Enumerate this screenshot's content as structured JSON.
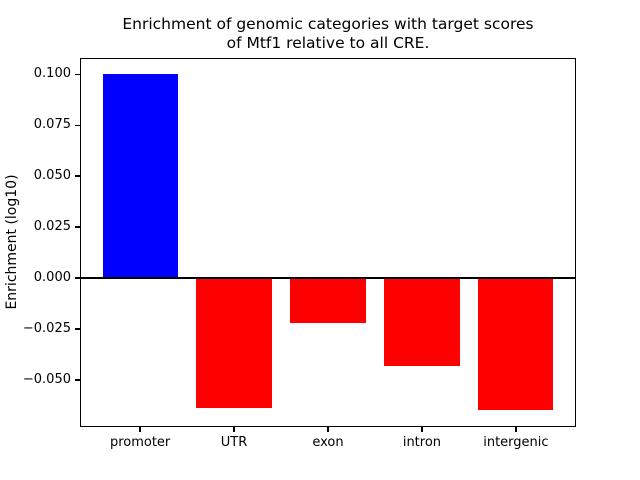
{
  "chart_data": {
    "type": "bar",
    "title": "Enrichment of genomic categories with target scores\nof Mtf1 relative to all CRE.",
    "title_line1": "Enrichment of genomic categories with target scores",
    "title_line2": "of Mtf1 relative to all CRE.",
    "xlabel": "",
    "ylabel": "Enrichment (log10)",
    "categories": [
      "promoter",
      "UTR",
      "exon",
      "intron",
      "intergenic"
    ],
    "values": [
      0.1,
      -0.064,
      -0.022,
      -0.043,
      -0.065
    ],
    "bar_colors": [
      "#0000ff",
      "#ff0000",
      "#ff0000",
      "#ff0000",
      "#ff0000"
    ],
    "positive_color": "#0000ff",
    "negative_color": "#ff0000",
    "yticks": [
      0.1,
      0.075,
      0.05,
      0.025,
      0.0,
      -0.025,
      -0.05
    ],
    "ytick_labels": [
      "0.100",
      "0.075",
      "0.050",
      "0.025",
      "0.000",
      "−0.025",
      "−0.050"
    ],
    "ylim": [
      -0.07325,
      0.10825
    ],
    "xlim": [
      -0.64,
      4.64
    ],
    "bar_width": 0.8,
    "zero_line": true,
    "grid": false,
    "legend": null,
    "axis_color": "#000000",
    "background_color": "#ffffff"
  }
}
